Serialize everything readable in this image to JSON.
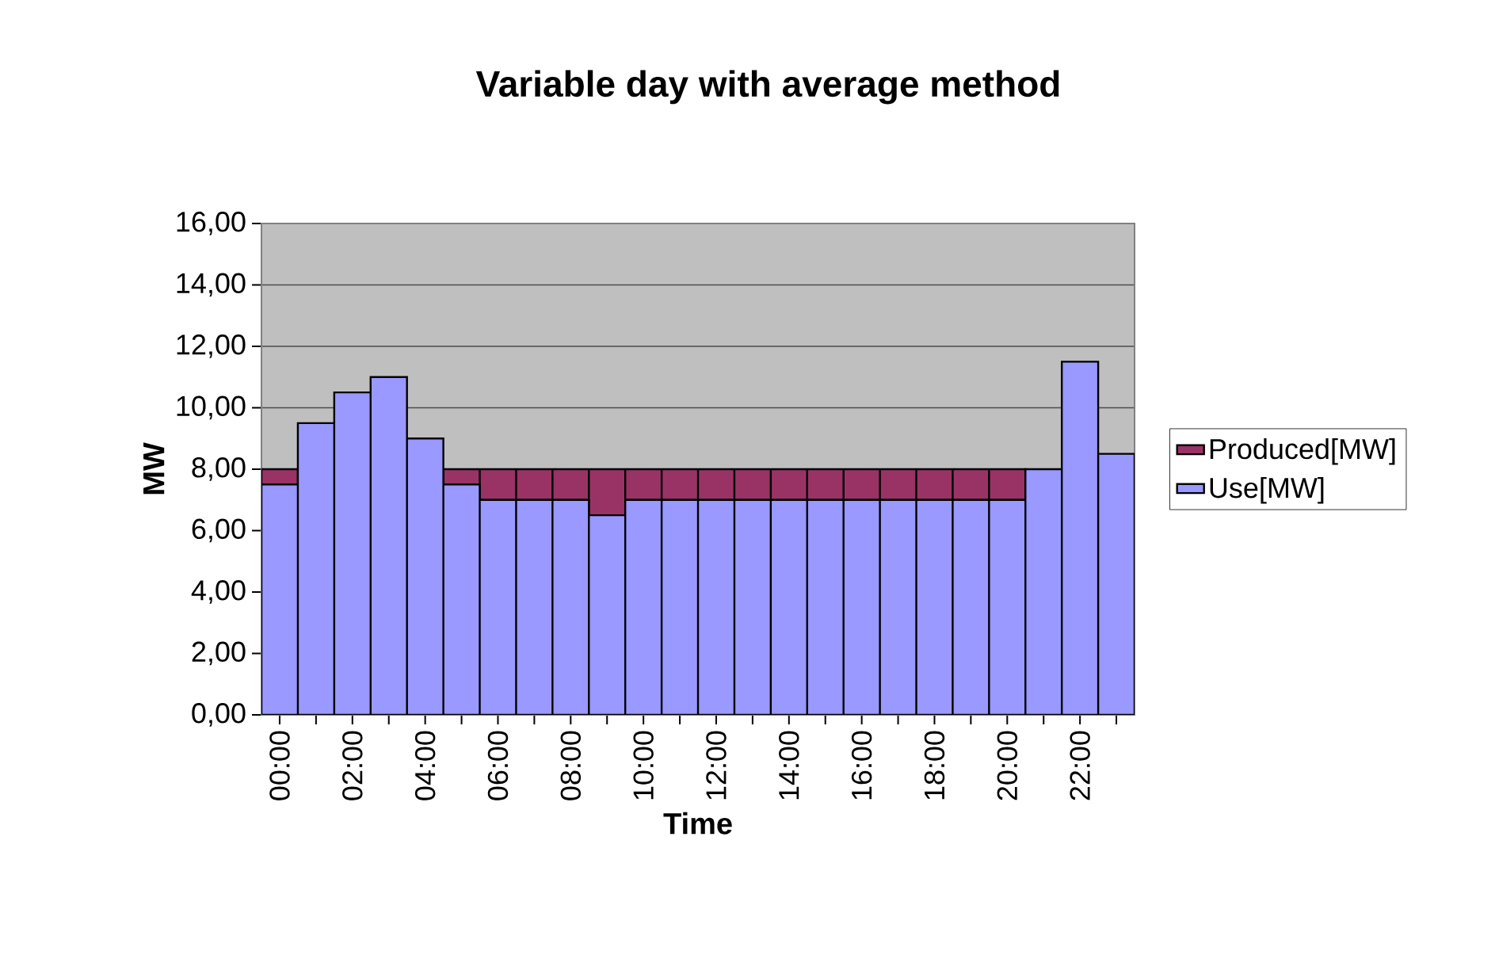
{
  "chart_data": {
    "type": "bar",
    "title": "Variable day with average method",
    "xlabel": "Time",
    "ylabel": "MW",
    "categories": [
      "00:00",
      null,
      "02:00",
      null,
      "04:00",
      null,
      "06:00",
      null,
      "08:00",
      null,
      "10:00",
      null,
      "12:00",
      null,
      "14:00",
      null,
      "16:00",
      null,
      "18:00",
      null,
      "20:00",
      null,
      "22:00",
      null
    ],
    "stacked": true,
    "series": [
      {
        "name": "Use[MW]",
        "color": "#9999ff",
        "values": [
          7.5,
          9.5,
          10.5,
          11,
          9,
          7.5,
          7,
          7,
          7,
          6.5,
          7,
          7,
          7,
          7,
          7,
          7,
          7,
          7,
          7,
          7,
          7,
          8,
          11.5,
          8.5
        ]
      },
      {
        "name": "Produced[MW]",
        "color": "#993366",
        "values": [
          0.5,
          0,
          0,
          0,
          0,
          0.5,
          1,
          1,
          1,
          1.5,
          1,
          1,
          1,
          1,
          1,
          1,
          1,
          1,
          1,
          1,
          1,
          0,
          0,
          0
        ]
      }
    ],
    "ylim": [
      0,
      16
    ],
    "yticks": [
      {
        "value": 0,
        "label": "0,00"
      },
      {
        "value": 2,
        "label": "2,00"
      },
      {
        "value": 4,
        "label": "4,00"
      },
      {
        "value": 6,
        "label": "6,00"
      },
      {
        "value": 8,
        "label": "8,00"
      },
      {
        "value": 10,
        "label": "10,00"
      },
      {
        "value": 12,
        "label": "12,00"
      },
      {
        "value": 14,
        "label": "14,00"
      },
      {
        "value": 16,
        "label": "16,00"
      }
    ],
    "grid": "y",
    "legend": "right"
  }
}
